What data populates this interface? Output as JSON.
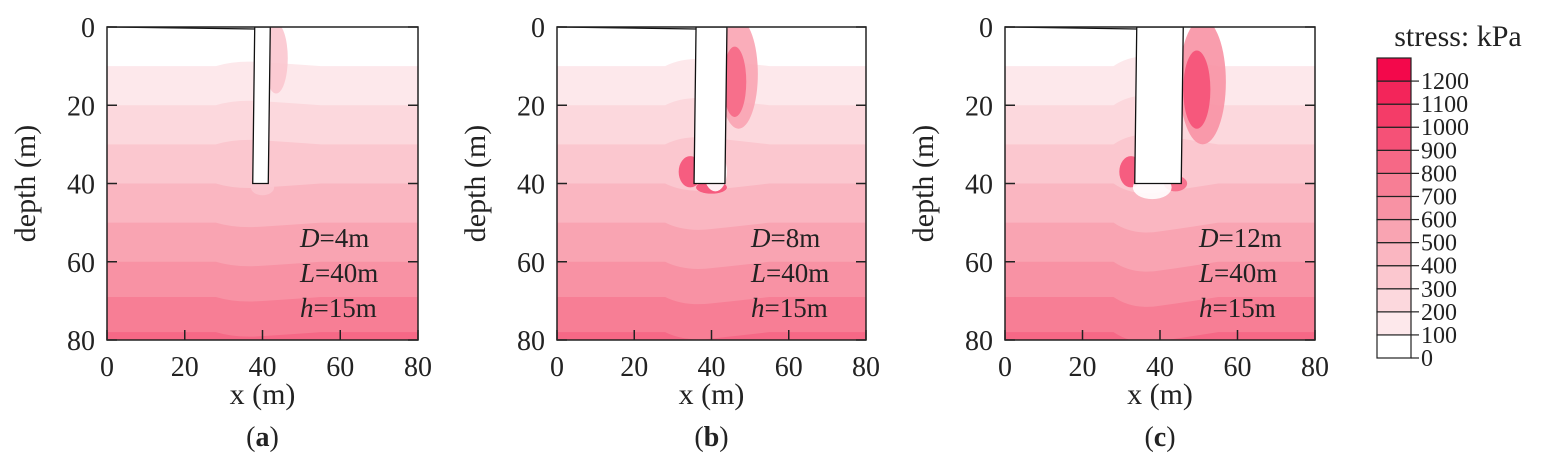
{
  "chart_data": {
    "type": "heatmap",
    "colorbar": {
      "title": "stress: kPa",
      "levels": [
        0,
        100,
        200,
        300,
        400,
        500,
        600,
        700,
        800,
        900,
        1000,
        1100,
        1200
      ],
      "tick_labels": [
        "0",
        "100",
        "200",
        "300",
        "400",
        "500",
        "600",
        "700",
        "800",
        "900",
        "1000",
        "1100",
        "1200"
      ],
      "colors": [
        "#ffffff",
        "#fde8eb",
        "#fcd8dd",
        "#fbc7cf",
        "#fab6c1",
        "#f9a4b2",
        "#f892a4",
        "#f77e95",
        "#f66886",
        "#f55177",
        "#f43c68",
        "#f3255a",
        "#f3084b"
      ]
    },
    "xlabel": "x (m)",
    "ylabel": "depth (m)",
    "xlim": [
      0,
      80
    ],
    "ylim": [
      0,
      80
    ],
    "x_ticks": [
      "0",
      "20",
      "40",
      "60",
      "80"
    ],
    "y_ticks": [
      "0",
      "20",
      "40",
      "60",
      "80"
    ],
    "band_depths_m": [
      10,
      20,
      30,
      40,
      50,
      60,
      69,
      78
    ],
    "panels": [
      {
        "caption_letter": "a",
        "params": [
          "D=4m",
          "L=40m",
          "h=15m"
        ],
        "param_vars": [
          "D",
          "L",
          "h"
        ],
        "param_vals": [
          "=4m",
          "=40m",
          "=15m"
        ],
        "D": 4,
        "L": 40,
        "h": 15,
        "hotspots": [
          {
            "x": 43.5,
            "depth": 8,
            "rx": 3,
            "ry": 9,
            "level": 3
          },
          {
            "x": 40,
            "depth": 41,
            "rx": 3,
            "ry": 2,
            "level": 3
          }
        ]
      },
      {
        "caption_letter": "b",
        "params": [
          "D=8m",
          "L=40m",
          "h=15m"
        ],
        "param_vars": [
          "D",
          "L",
          "h"
        ],
        "param_vals": [
          "=8m",
          "=40m",
          "=15m"
        ],
        "D": 8,
        "L": 40,
        "h": 15,
        "hotspots": [
          {
            "x": 47,
            "depth": 12,
            "rx": 5,
            "ry": 14,
            "level": 5
          },
          {
            "x": 46,
            "depth": 14,
            "rx": 3,
            "ry": 9,
            "level": 8
          },
          {
            "x": 34.5,
            "depth": 37,
            "rx": 3,
            "ry": 4,
            "level": 9
          },
          {
            "x": 40,
            "depth": 41,
            "rx": 4,
            "ry": 1.6,
            "level": 9
          },
          {
            "x": 41,
            "depth": 37,
            "rx": 3,
            "ry": 5,
            "level": 0
          }
        ]
      },
      {
        "caption_letter": "c",
        "params": [
          "D=12m",
          "L=40m",
          "h=15m"
        ],
        "param_vars": [
          "D",
          "L",
          "h"
        ],
        "param_vals": [
          "=12m",
          "=40m",
          "=15m"
        ],
        "D": 12,
        "L": 40,
        "h": 15,
        "hotspots": [
          {
            "x": 51,
            "depth": 14,
            "rx": 6,
            "ry": 16,
            "level": 6
          },
          {
            "x": 49.5,
            "depth": 16,
            "rx": 3.5,
            "ry": 10,
            "level": 9
          },
          {
            "x": 32.5,
            "depth": 37,
            "rx": 3,
            "ry": 4,
            "level": 9
          },
          {
            "x": 44,
            "depth": 40,
            "rx": 3,
            "ry": 2,
            "level": 8
          },
          {
            "x": 38,
            "depth": 41,
            "rx": 5,
            "ry": 3,
            "level": 0
          }
        ]
      }
    ]
  }
}
